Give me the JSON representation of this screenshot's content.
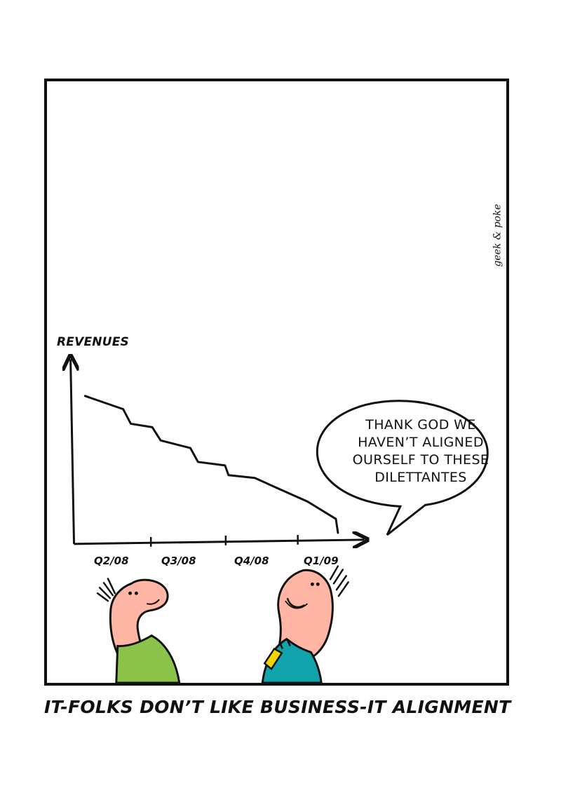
{
  "comic": {
    "credit": "geek & poke",
    "caption": "IT-FOLKS DON’T LIKE BUSINESS-IT ALIGNMENT",
    "speech_lines": [
      "THANK GOD WE",
      "HAVEN’T ALIGNED",
      "OURSELF TO THESE",
      "DILETTANTES"
    ],
    "colors": {
      "outline": "#111111",
      "skin": "#ffb6a5",
      "left_shirt": "#8bc34a",
      "right_shirt": "#13a3ad",
      "tie": "#f2d400",
      "background": "#ffffff"
    },
    "icon_names": {
      "left_person": "person-left-icon",
      "right_person": "person-right-icon"
    }
  },
  "chart_data": {
    "type": "line",
    "title": "",
    "xlabel": "",
    "ylabel": "REVENUES",
    "categories": [
      "Q2/08",
      "Q3/08",
      "Q4/08",
      "Q1/09"
    ],
    "x_axis_arrow": true,
    "y_axis_arrow": true,
    "grid": false,
    "legend": "none",
    "trend": "decreasing"
  }
}
